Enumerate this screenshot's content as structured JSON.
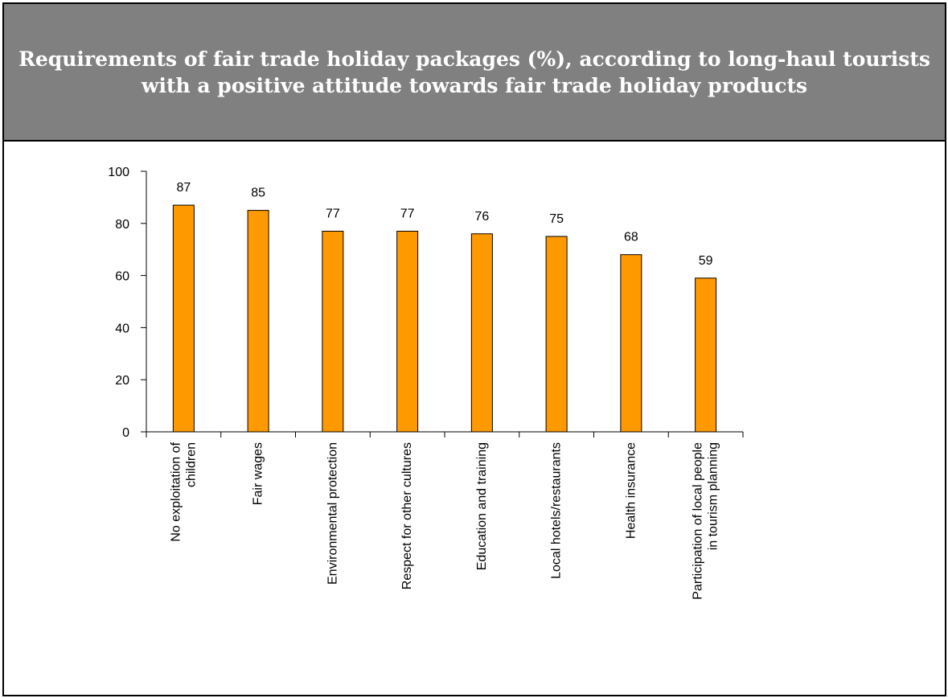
{
  "title": "Requirements of fair trade holiday packages (%), according to long-haul tourists with a positive attitude towards fair trade holiday products",
  "chart_data": {
    "type": "bar",
    "title": "Requirements of fair trade holiday packages (%), according to long-haul tourists with a positive attitude towards fair trade holiday products",
    "categories": [
      [
        "No exploitation of",
        "children"
      ],
      [
        "Fair wages"
      ],
      [
        "Environmental protection"
      ],
      [
        "Respect for other cultures"
      ],
      [
        "Education and training"
      ],
      [
        "Local hotels/restaurants"
      ],
      [
        "Health insurance"
      ],
      [
        "Participation of local people",
        "in tourism planning"
      ]
    ],
    "values": [
      87,
      85,
      77,
      77,
      76,
      75,
      68,
      59
    ],
    "ylim": [
      0,
      100
    ],
    "yticks": [
      0,
      20,
      40,
      60,
      80,
      100
    ],
    "xlabel": "",
    "ylabel": "",
    "grid": false,
    "bar_color": "#FF9900",
    "header_color": "#808080"
  }
}
